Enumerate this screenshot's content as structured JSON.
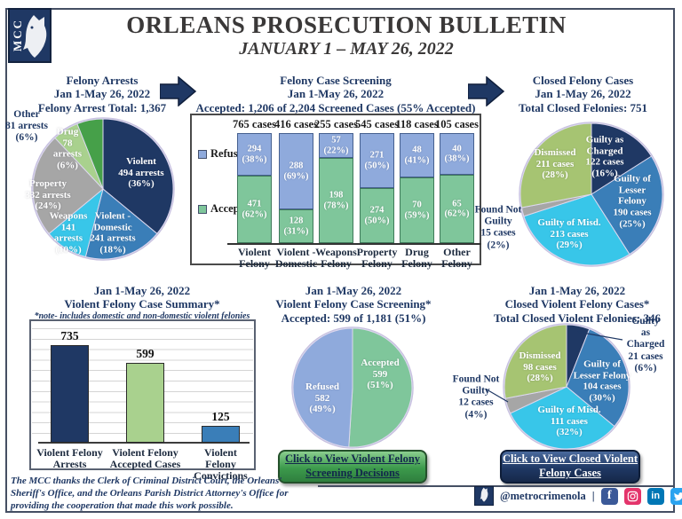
{
  "header": {
    "logo": "MCC",
    "title": "ORLEANS PROSECUTION BULLETIN",
    "subtitle": "JANUARY 1 – MAY 26, 2022"
  },
  "top": {
    "arrests": {
      "t1": "Felony Arrests",
      "t2": "Jan 1-May 26, 2022",
      "t3": "Felony Arrest Total: 1,367"
    },
    "screening": {
      "t1": "Felony Case Screening",
      "t2": "Jan 1-May 26, 2022",
      "t3": "Accepted: 1,206 of 2,204 Screened Cases (55% Accepted)"
    },
    "closed": {
      "t1": "Closed Felony Cases",
      "t2": "Jan 1-May 26, 2022",
      "t3": "Total Closed Felonies: 751"
    }
  },
  "bottom": {
    "summary": {
      "t1": "Jan 1-May 26, 2022",
      "t2": "Violent Felony Case Summary*",
      "t3": "*note- includes domestic and non-domestic violent felonies"
    },
    "screening": {
      "t1": "Jan 1-May 26, 2022",
      "t2": "Violent Felony Case Screening*",
      "t3": "Accepted: 599 of 1,181 (51%)",
      "button": "Click to View Violent Felony\nScreening Decisions"
    },
    "closed": {
      "t1": "Jan 1-May 26, 2022",
      "t2": "Closed  Violent Felony Cases*",
      "t3": "Total Closed Violent Felonies: 346",
      "button": "Click to View Closed Violent\nFelony Cases"
    }
  },
  "footer": {
    "thanks": "The MCC thanks the Clerk of Criminal District Court, the Orleans'\nSheriff's Office, and the Orleans Parish District Attorney's Office for\nproviding the cooperation that made this work possible.",
    "handle": "@metrocrimenola",
    "separator": "|",
    "icons": [
      "facebook-icon",
      "instagram-icon",
      "linkedin-icon",
      "twitter-icon"
    ]
  },
  "colors": {
    "navy": "#1F3864",
    "steel_blue": "#3A7EB8",
    "cyan": "#38C6E9",
    "gray": "#A6A6A6",
    "light_green": "#A9D18E",
    "green": "#46A049",
    "olive_green": "#A6C472",
    "refused_blue": "#8FAADC",
    "accepted_green": "#7FC69B",
    "divider_blue": "#5C7CA8"
  },
  "chart_data": [
    {
      "id": "felony-arrests-pie",
      "type": "pie",
      "title": "Felony Arrests",
      "subtitle": "Jan 1-May 26, 2022",
      "total_label": "Felony Arrest Total: 1,367",
      "total": 1367,
      "slices": [
        {
          "name": "Violent",
          "cases": 494,
          "pct": 36,
          "color": "#1F3864",
          "label": "Violent\n494 arrests\n(36%)"
        },
        {
          "name": "Violent - Domestic",
          "cases": 241,
          "pct": 18,
          "color": "#3A7EB8",
          "label": "Violent -\nDomestic\n241 arrests\n(18%)"
        },
        {
          "name": "Weapons",
          "cases": 141,
          "pct": 10,
          "color": "#38C6E9",
          "label": "Weapons\n141\narrests\n(10%)"
        },
        {
          "name": "Property",
          "cases": 332,
          "pct": 24,
          "color": "#A6A6A6",
          "label": "Property\n332 arrests\n(24%)"
        },
        {
          "name": "Drug",
          "cases": 78,
          "pct": 6,
          "color": "#A9D18E",
          "label": "Drug\n78\narrests\n(6%)"
        },
        {
          "name": "Other",
          "cases": 81,
          "pct": 6,
          "color": "#46A049",
          "label": "Other\n81 arrests\n(6%)"
        }
      ]
    },
    {
      "id": "felony-screening-bars",
      "type": "stacked-bar",
      "title": "Felony Case Screening",
      "subtitle": "Jan 1-May 26, 2022",
      "total_label": "Accepted: 1,206 of 2,204 Screened Cases (55% Accepted)",
      "accepted_total": 1206,
      "screened_total": 2204,
      "accepted_pct": 55,
      "legend": [
        {
          "name": "Refused",
          "color": "#8FAADC"
        },
        {
          "name": "Accepted",
          "color": "#7FC69B"
        }
      ],
      "categories": [
        {
          "label": "Violent\nFelony",
          "total_label": "765 cases",
          "total": 765,
          "refused": 294,
          "refused_pct": 38,
          "refused_label": "294\n(38%)",
          "accepted": 471,
          "accepted_pct": 62,
          "accepted_label": "471\n(62%)"
        },
        {
          "label": "Violent -\nDomestic",
          "total_label": "416 cases",
          "total": 416,
          "refused": 288,
          "refused_pct": 69,
          "refused_label": "288\n(69%)",
          "accepted": 128,
          "accepted_pct": 31,
          "accepted_label": "128\n(31%)"
        },
        {
          "label": "Weapons\nFelony",
          "total_label": "255 cases",
          "total": 255,
          "refused": 57,
          "refused_pct": 22,
          "refused_label": "57\n(22%)",
          "accepted": 198,
          "accepted_pct": 78,
          "accepted_label": "198\n(78%)"
        },
        {
          "label": "Property\nFelony",
          "total_label": "545 cases",
          "total": 545,
          "refused": 271,
          "refused_pct": 50,
          "refused_label": "271\n(50%)",
          "accepted": 274,
          "accepted_pct": 50,
          "accepted_label": "274\n(50%)"
        },
        {
          "label": "Drug\nFelony",
          "total_label": "118 cases",
          "total": 118,
          "refused": 48,
          "refused_pct": 41,
          "refused_label": "48\n(41%)",
          "accepted": 70,
          "accepted_pct": 59,
          "accepted_label": "70\n(59%)"
        },
        {
          "label": "Other\nFelony",
          "total_label": "105 cases",
          "total": 105,
          "refused": 40,
          "refused_pct": 38,
          "refused_label": "40\n(38%)",
          "accepted": 65,
          "accepted_pct": 62,
          "accepted_label": "65\n(62%)"
        }
      ]
    },
    {
      "id": "closed-felony-pie",
      "type": "pie",
      "title": "Closed Felony Cases",
      "subtitle": "Jan 1-May 26, 2022",
      "total_label": "Total Closed Felonies: 751",
      "total": 751,
      "slices": [
        {
          "name": "Guilty as Charged",
          "cases": 122,
          "pct": 16,
          "color": "#1F3864",
          "label": "Guilty as\nCharged\n122 cases\n(16%)"
        },
        {
          "name": "Guilty of Lesser Felony",
          "cases": 190,
          "pct": 25,
          "color": "#3A7EB8",
          "label": "Guilty of\nLesser Felony\n190 cases\n(25%)"
        },
        {
          "name": "Guilty of Misd.",
          "cases": 213,
          "pct": 29,
          "color": "#38C6E9",
          "label": "Guilty of Misd.\n213 cases\n(29%)"
        },
        {
          "name": "Found Not Guilty",
          "cases": 15,
          "pct": 2,
          "color": "#A6A6A6",
          "label": "Found Not\nGuilty\n15 cases\n(2%)"
        },
        {
          "name": "Dismissed",
          "cases": 211,
          "pct": 28,
          "color": "#A6C472",
          "label": "Dismissed\n211 cases\n(28%)"
        }
      ]
    },
    {
      "id": "violent-summary-bars",
      "type": "bar",
      "title": "Violent Felony Case Summary*",
      "subtitle": "Jan 1-May 26, 2022",
      "note": "*note- includes domestic and non-domestic violent felonies",
      "categories": [
        "Violent Felony\nArrests",
        "Violent Felony\nAccepted Cases",
        "Violent Felony\nConvictions"
      ],
      "values": [
        735,
        599,
        125
      ],
      "colors": [
        "#1F3864",
        "#A9D18E",
        "#3A7EB8"
      ],
      "ylim": [
        0,
        800
      ]
    },
    {
      "id": "violent-screening-pie",
      "type": "pie",
      "title": "Violent Felony Case Screening*",
      "subtitle": "Jan 1-May 26, 2022",
      "total_label": "Accepted: 599 of 1,181 (51%)",
      "total": 1181,
      "slices": [
        {
          "name": "Accepted",
          "cases": 599,
          "pct": 51,
          "color": "#7FC69B",
          "label": "Accepted\n599\n(51%)"
        },
        {
          "name": "Refused",
          "cases": 582,
          "pct": 49,
          "color": "#8FAADC",
          "label": "Refused\n582\n(49%)"
        }
      ]
    },
    {
      "id": "closed-violent-pie",
      "type": "pie",
      "title": "Closed Violent Felony Cases*",
      "subtitle": "Jan 1-May 26, 2022",
      "total_label": "Total Closed Violent Felonies: 346",
      "total": 346,
      "slices": [
        {
          "name": "Guilty as Charged",
          "cases": 21,
          "pct": 6,
          "color": "#1F3864",
          "label": "Guilty as\nCharged\n21 cases\n(6%)"
        },
        {
          "name": "Guilty of Lesser Felony",
          "cases": 104,
          "pct": 30,
          "color": "#3A7EB8",
          "label": "Guilty of\nLesser Felony\n104 cases\n(30%)"
        },
        {
          "name": "Guilty of Misd.",
          "cases": 111,
          "pct": 32,
          "color": "#38C6E9",
          "label": "Guilty of Misd.\n111 cases\n(32%)"
        },
        {
          "name": "Found Not Guilty",
          "cases": 12,
          "pct": 4,
          "color": "#A6A6A6",
          "label": "Found Not\nGuilty\n12 cases\n(4%)"
        },
        {
          "name": "Dismissed",
          "cases": 98,
          "pct": 28,
          "color": "#A6C472",
          "label": "Dismissed\n98 cases\n(28%)"
        }
      ]
    }
  ]
}
